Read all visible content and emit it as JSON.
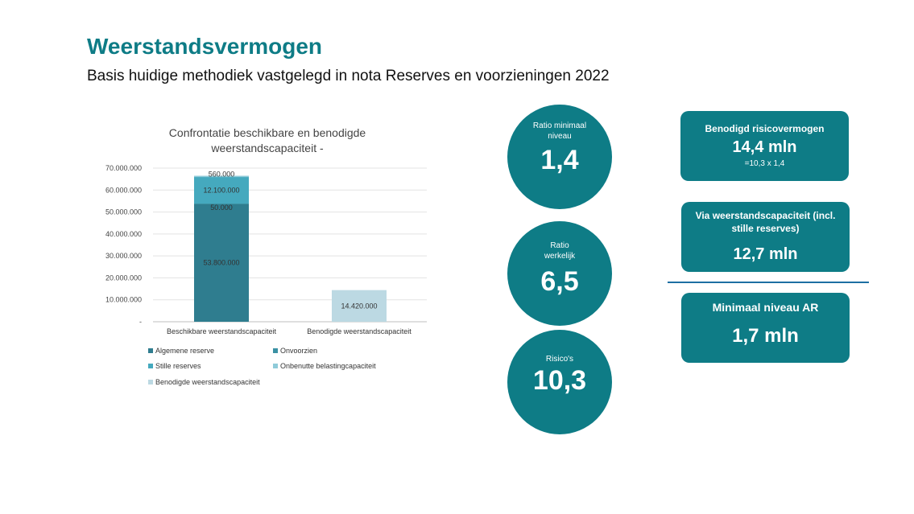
{
  "page": {
    "title": "Weerstandsvermogen",
    "subtitle": "Basis huidige methodiek vastgelegd in nota Reserves en voorzieningen 2022"
  },
  "circles": [
    {
      "label": "Ratio minimaal niveau",
      "value": "1,4"
    },
    {
      "label": "Ratio werkelijk",
      "value": "6,5"
    },
    {
      "label": "Risico's",
      "value": "10,3"
    }
  ],
  "boxes": {
    "required": {
      "label": "Benodigd risicovermogen",
      "value": "14,4 mln",
      "note": "=10,3 x 1,4"
    },
    "capacity": {
      "label": "Via weerstandscapaciteit (incl. stille reserves)",
      "value": "12,7 mln"
    },
    "minimum": {
      "label": "Minimaal niveau AR",
      "value": "1,7 mln"
    }
  },
  "colors": {
    "accent": "#0e7c86",
    "algemene_reserve": "#2f7d8f",
    "onvoorzien": "#3b91a4",
    "stille_reserves": "#45a9be",
    "onbenutte_belastingcapaciteit": "#8fcbd9",
    "benodigde_weerstandscapaciteit": "#bcd9e3"
  },
  "chart_data": {
    "type": "bar",
    "stacked": true,
    "title": "Confrontatie beschikbare en benodigde weerstandscapaciteit -",
    "categories": [
      "Beschikbare weerstandscapaciteit",
      "Benodigde weerstandscapaciteit"
    ],
    "ylim": [
      0,
      70000000
    ],
    "yticks": [
      0,
      10000000,
      20000000,
      30000000,
      40000000,
      50000000,
      60000000,
      70000000
    ],
    "ytick_labels": [
      "-",
      "10.000.000",
      "20.000.000",
      "30.000.000",
      "40.000.000",
      "50.000.000",
      "60.000.000",
      "70.000.000"
    ],
    "grid": true,
    "legend_position": "bottom",
    "series": [
      {
        "name": "Algemene reserve",
        "values": [
          53800000,
          0
        ],
        "labels": [
          "53.800.000",
          ""
        ]
      },
      {
        "name": "Onvoorzien",
        "values": [
          50000,
          0
        ],
        "labels": [
          "50.000",
          ""
        ]
      },
      {
        "name": "Stille reserves",
        "values": [
          12100000,
          0
        ],
        "labels": [
          "12.100.000",
          ""
        ]
      },
      {
        "name": "Onbenutte belastingcapaciteit",
        "values": [
          560000,
          0
        ],
        "labels": [
          "560.000",
          ""
        ]
      },
      {
        "name": "Benodigde weerstandscapaciteit",
        "values": [
          0,
          14420000
        ],
        "labels": [
          "",
          "14.420.000"
        ]
      }
    ]
  }
}
